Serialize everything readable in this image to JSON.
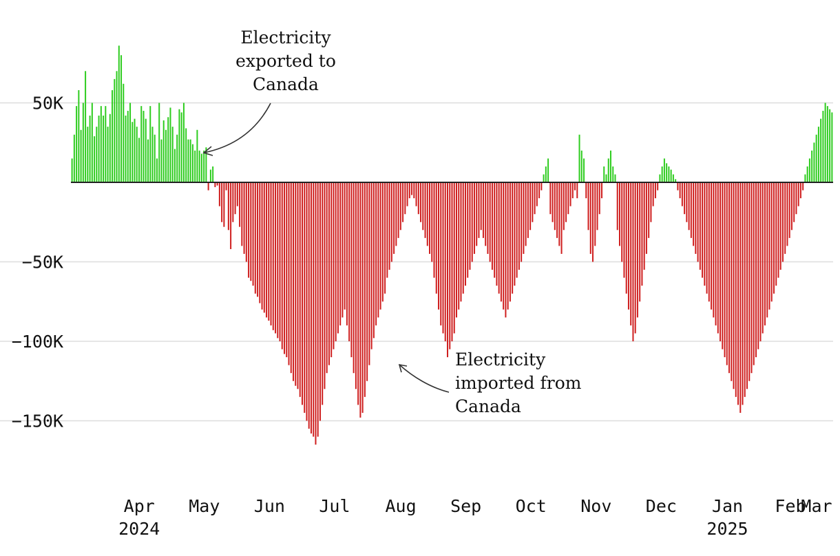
{
  "colors": {
    "positive": "#2ecc1f",
    "negative": "#cf1f1f",
    "grid": "#dddddd",
    "zero_line": "#222222",
    "text": "#111111"
  },
  "annotations": {
    "export": [
      "Electricity",
      "exported to",
      "Canada"
    ],
    "import": [
      "Electricity",
      "imported from",
      "Canada"
    ]
  },
  "chart_data": {
    "type": "bar",
    "title": "",
    "xlabel": "",
    "ylabel": "",
    "ylim": [
      -175000,
      100000
    ],
    "y_ticks": [
      50000,
      -50000,
      -100000,
      -150000
    ],
    "y_tick_labels": [
      "50K",
      "−50K",
      "−100K",
      "−150K"
    ],
    "x_start": "2024-03-15",
    "x_end": "2025-03-07",
    "month_ticks": [
      {
        "date": "2024-04-01",
        "label": "Apr",
        "sub": "2024"
      },
      {
        "date": "2024-05-01",
        "label": "May",
        "sub": ""
      },
      {
        "date": "2024-06-01",
        "label": "Jun",
        "sub": ""
      },
      {
        "date": "2024-07-01",
        "label": "Jul",
        "sub": ""
      },
      {
        "date": "2024-08-01",
        "label": "Aug",
        "sub": ""
      },
      {
        "date": "2024-09-01",
        "label": "Sep",
        "sub": ""
      },
      {
        "date": "2024-10-01",
        "label": "Oct",
        "sub": ""
      },
      {
        "date": "2024-11-01",
        "label": "Nov",
        "sub": ""
      },
      {
        "date": "2024-12-01",
        "label": "Dec",
        "sub": ""
      },
      {
        "date": "2025-01-01",
        "label": "Jan",
        "sub": "2025"
      },
      {
        "date": "2025-02-01",
        "label": "Feb",
        "sub": ""
      },
      {
        "date": "2025-03-01",
        "label": "Mar",
        "sub": ""
      }
    ],
    "series": [
      {
        "values": [
          [
            15000,
            30000,
            48000,
            58000,
            33000,
            50000,
            70000,
            35000,
            42000,
            50000,
            29000,
            35000,
            42000,
            48000,
            42000,
            48000,
            35000,
            43000,
            58000,
            65000,
            70000,
            86000,
            80000,
            62000,
            42000,
            45000,
            50000,
            38000,
            40000,
            35000
          ],
          [
            28000,
            48000,
            45000,
            40000,
            27000,
            48000,
            35000,
            30000,
            15000,
            50000,
            27000,
            39000,
            33000,
            41000,
            47000,
            35000,
            21000,
            30000,
            46000,
            44000,
            50000,
            34000,
            27000,
            27000,
            24000,
            20000,
            33000,
            20000,
            18000,
            20000,
            22000
          ],
          [
            -5000,
            8000,
            10000,
            -3000,
            -2000,
            -15000,
            -25000,
            -28000,
            -5000,
            -30000,
            -42000,
            -25000,
            -20000,
            -15000,
            -28000,
            -40000,
            -45000,
            -50000,
            -60000,
            -62000,
            -65000,
            -70000,
            -72000,
            -76000,
            -80000,
            -82000,
            -85000,
            -87000,
            -90000,
            -93000
          ],
          [
            -95000,
            -98000,
            -100000,
            -105000,
            -108000,
            -110000,
            -115000,
            -120000,
            -125000,
            -128000,
            -130000,
            -135000,
            -140000,
            -145000,
            -150000,
            -155000,
            -158000,
            -160000,
            -165000,
            -160000,
            -150000,
            -140000,
            -130000,
            -120000,
            -115000,
            -110000,
            -105000,
            -100000,
            -95000,
            -90000,
            -85000
          ],
          [
            -80000,
            -90000,
            -100000,
            -110000,
            -120000,
            -130000,
            -140000,
            -148000,
            -145000,
            -135000,
            -125000,
            -115000,
            -105000,
            -98000,
            -90000,
            -85000,
            -80000,
            -75000,
            -70000,
            -60000,
            -55000,
            -50000,
            -45000,
            -40000,
            -35000,
            -30000,
            -25000,
            -20000,
            -15000,
            -10000,
            -8000
          ],
          [
            -10000,
            -15000,
            -20000,
            -25000,
            -30000,
            -35000,
            -40000,
            -45000,
            -50000,
            -60000,
            -70000,
            -80000,
            -90000,
            -95000,
            -100000,
            -110000,
            -105000,
            -100000,
            -95000,
            -85000,
            -80000,
            -75000,
            -70000,
            -65000,
            -60000,
            -55000,
            -50000,
            -45000,
            -40000,
            -35000
          ],
          [
            -30000,
            -35000,
            -40000,
            -45000,
            -50000,
            -55000,
            -60000,
            -65000,
            -70000,
            -75000,
            -80000,
            -85000,
            -80000,
            -75000,
            -70000,
            -65000,
            -60000,
            -55000,
            -50000,
            -45000,
            -40000,
            -35000,
            -30000,
            -25000,
            -20000,
            -15000,
            -10000,
            -5000,
            5000,
            10000,
            15000
          ],
          [
            -20000,
            -25000,
            -30000,
            -35000,
            -40000,
            -45000,
            -30000,
            -25000,
            -20000,
            -15000,
            -10000,
            -5000,
            -10000,
            30000,
            20000,
            15000,
            -10000,
            -30000,
            -45000,
            -50000,
            -40000,
            -30000,
            -20000,
            -10000,
            10000,
            5000,
            15000,
            20000,
            10000,
            5000
          ],
          [
            -30000,
            -40000,
            -50000,
            -60000,
            -70000,
            -80000,
            -90000,
            -100000,
            -95000,
            -85000,
            -75000,
            -65000,
            -55000,
            -45000,
            -35000,
            -25000,
            -15000,
            -10000,
            -5000,
            5000,
            10000,
            15000,
            12000,
            10000,
            8000,
            5000,
            2000,
            -5000,
            -10000,
            -15000,
            -20000
          ],
          [
            -25000,
            -30000,
            -35000,
            -40000,
            -45000,
            -50000,
            -55000,
            -60000,
            -65000,
            -70000,
            -75000,
            -80000,
            -85000,
            -90000,
            -95000,
            -100000,
            -105000,
            -110000,
            -115000,
            -120000,
            -125000,
            -130000,
            -135000,
            -140000,
            -145000,
            -140000,
            -135000,
            -130000,
            -125000,
            -120000,
            -115000
          ],
          [
            -110000,
            -105000,
            -100000,
            -95000,
            -90000,
            -85000,
            -80000,
            -75000,
            -70000,
            -65000,
            -60000,
            -55000,
            -50000,
            -45000,
            -40000,
            -35000,
            -30000,
            -25000,
            -20000,
            -15000,
            -10000,
            -5000,
            5000,
            10000,
            15000,
            20000,
            25000,
            30000
          ],
          [
            35000,
            40000,
            45000,
            50000,
            48000,
            46000,
            44000
          ]
        ]
      }
    ]
  }
}
